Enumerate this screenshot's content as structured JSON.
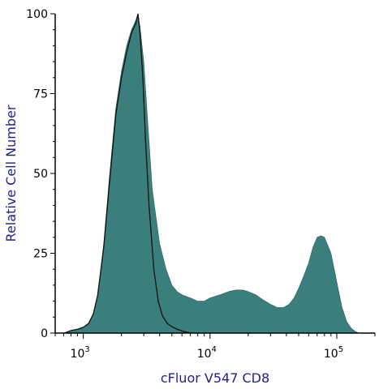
{
  "chart_data": {
    "type": "area",
    "title": "",
    "xlabel": "cFluor V547 CD8",
    "ylabel": "Relative Cell Number",
    "x_scale": "log",
    "xlim": [
      600,
      200000
    ],
    "ylim": [
      0,
      100
    ],
    "x_ticks": [
      {
        "value": 1000,
        "base": "10",
        "exp": "3"
      },
      {
        "value": 10000,
        "base": "10",
        "exp": "4"
      },
      {
        "value": 100000,
        "base": "10",
        "exp": "5"
      }
    ],
    "y_ticks": [
      0,
      25,
      50,
      75,
      100
    ],
    "grid": false,
    "series": [
      {
        "style": "filled",
        "color": "#3a7f7b",
        "x": [
          710,
          800,
          900,
          1000,
          1100,
          1200,
          1300,
          1450,
          1600,
          1800,
          2000,
          2200,
          2400,
          2600,
          2700,
          2800,
          3000,
          3200,
          3500,
          4000,
          4500,
          5000,
          5500,
          6000,
          7000,
          8000,
          9000,
          10000,
          12000,
          14000,
          16000,
          18000,
          20000,
          23000,
          26000,
          30000,
          34000,
          38000,
          42000,
          46000,
          50000,
          55000,
          60000,
          65000,
          70000,
          75000,
          80000,
          90000,
          100000,
          110000,
          120000,
          130000,
          140000,
          150000
        ],
        "values": [
          0,
          0.8,
          1.2,
          1.8,
          3,
          6,
          12,
          28,
          48,
          70,
          82,
          90,
          95,
          98,
          100,
          96,
          85,
          68,
          45,
          28,
          20,
          15,
          13,
          12,
          11,
          10,
          10,
          11,
          12,
          13,
          13.5,
          13.5,
          13,
          12,
          10.5,
          9,
          8,
          8,
          9,
          11,
          14,
          18,
          22,
          27,
          30,
          30.5,
          30,
          25,
          16,
          8,
          3.5,
          1.5,
          0.5,
          0
        ]
      },
      {
        "style": "line",
        "color": "#111111",
        "x": [
          710,
          800,
          900,
          1000,
          1100,
          1200,
          1300,
          1450,
          1600,
          1800,
          2000,
          2200,
          2400,
          2600,
          2700,
          2800,
          2950,
          3100,
          3300,
          3600,
          3900,
          4200,
          4600,
          5000,
          5500,
          6000,
          6500,
          7000,
          7500
        ],
        "values": [
          0,
          0.8,
          1.2,
          1.8,
          3,
          6,
          12,
          27,
          46,
          68,
          80,
          88,
          94,
          97,
          100,
          94,
          80,
          60,
          40,
          20,
          10,
          5.5,
          3,
          2,
          1.2,
          0.7,
          0.3,
          0.1,
          0
        ]
      }
    ]
  }
}
